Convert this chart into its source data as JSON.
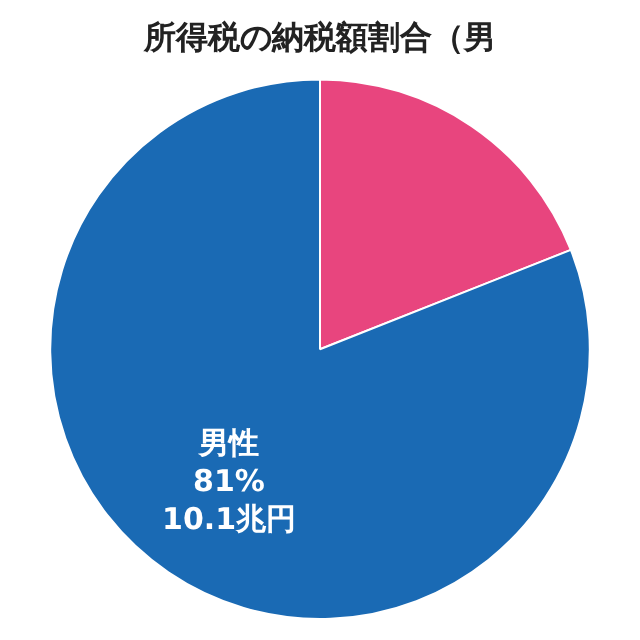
{
  "chart_data": {
    "type": "pie",
    "title": "所得税の納税額割合（男",
    "categories": [
      null,
      "男性"
    ],
    "values": [
      19,
      81
    ],
    "colors": [
      "#e8457e",
      "#1a6ab4"
    ],
    "value_labels": [
      null,
      "81%\n10.1兆円"
    ],
    "legend": false
  }
}
